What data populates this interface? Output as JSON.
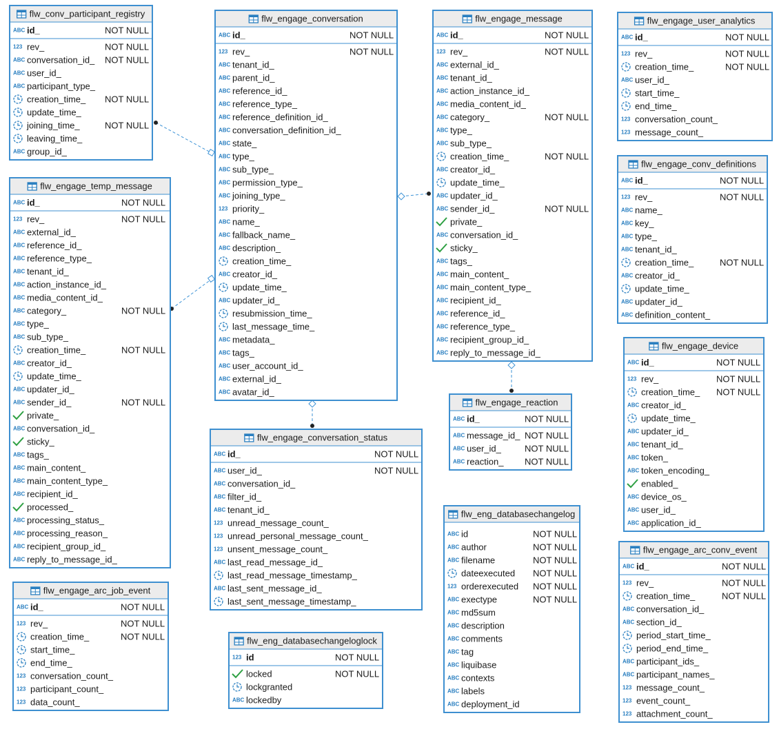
{
  "tables": [
    {
      "name": "flw_conv_participant_registry",
      "key": [
        {
          "kind": "ABC",
          "name": "id_",
          "constraint": "NOT NULL"
        }
      ],
      "columns": [
        {
          "kind": "123",
          "name": "rev_",
          "constraint": "NOT NULL"
        },
        {
          "kind": "ABC",
          "name": "conversation_id_",
          "constraint": "NOT NULL"
        },
        {
          "kind": "ABC",
          "name": "user_id_"
        },
        {
          "kind": "ABC",
          "name": "participant_type_"
        },
        {
          "kind": "clock",
          "name": "creation_time_",
          "constraint": "NOT NULL"
        },
        {
          "kind": "clock",
          "name": "update_time_"
        },
        {
          "kind": "clock",
          "name": "joining_time_",
          "constraint": "NOT NULL"
        },
        {
          "kind": "clock",
          "name": "leaving_time_"
        },
        {
          "kind": "ABC",
          "name": "group_id_"
        }
      ]
    },
    {
      "name": "flw_engage_temp_message",
      "key": [
        {
          "kind": "ABC",
          "name": "id_",
          "constraint": "NOT NULL"
        }
      ],
      "columns": [
        {
          "kind": "123",
          "name": "rev_",
          "constraint": "NOT NULL"
        },
        {
          "kind": "ABC",
          "name": "external_id_"
        },
        {
          "kind": "ABC",
          "name": "reference_id_"
        },
        {
          "kind": "ABC",
          "name": "reference_type_"
        },
        {
          "kind": "ABC",
          "name": "tenant_id_"
        },
        {
          "kind": "ABC",
          "name": "action_instance_id_"
        },
        {
          "kind": "ABC",
          "name": "media_content_id_"
        },
        {
          "kind": "ABC",
          "name": "category_",
          "constraint": "NOT NULL"
        },
        {
          "kind": "ABC",
          "name": "type_"
        },
        {
          "kind": "ABC",
          "name": "sub_type_"
        },
        {
          "kind": "clock",
          "name": "creation_time_",
          "constraint": "NOT NULL"
        },
        {
          "kind": "ABC",
          "name": "creator_id_"
        },
        {
          "kind": "clock",
          "name": "update_time_"
        },
        {
          "kind": "ABC",
          "name": "updater_id_"
        },
        {
          "kind": "ABC",
          "name": "sender_id_",
          "constraint": "NOT NULL"
        },
        {
          "kind": "check",
          "name": "private_"
        },
        {
          "kind": "ABC",
          "name": "conversation_id_"
        },
        {
          "kind": "check",
          "name": "sticky_"
        },
        {
          "kind": "ABC",
          "name": "tags_"
        },
        {
          "kind": "ABC",
          "name": "main_content_"
        },
        {
          "kind": "ABC",
          "name": "main_content_type_"
        },
        {
          "kind": "ABC",
          "name": "recipient_id_"
        },
        {
          "kind": "check",
          "name": "processed_"
        },
        {
          "kind": "ABC",
          "name": "processing_status_"
        },
        {
          "kind": "ABC",
          "name": "processing_reason_"
        },
        {
          "kind": "ABC",
          "name": "recipient_group_id_"
        },
        {
          "kind": "ABC",
          "name": "reply_to_message_id_"
        }
      ]
    },
    {
      "name": "flw_engage_arc_job_event",
      "key": [
        {
          "kind": "ABC",
          "name": "id_",
          "constraint": "NOT NULL"
        }
      ],
      "columns": [
        {
          "kind": "123",
          "name": "rev_",
          "constraint": "NOT NULL"
        },
        {
          "kind": "clock",
          "name": "creation_time_",
          "constraint": "NOT NULL"
        },
        {
          "kind": "clock",
          "name": "start_time_"
        },
        {
          "kind": "clock",
          "name": "end_time_"
        },
        {
          "kind": "123",
          "name": "conversation_count_"
        },
        {
          "kind": "123",
          "name": "participant_count_"
        },
        {
          "kind": "123",
          "name": "data_count_"
        }
      ]
    },
    {
      "name": "flw_engage_conversation",
      "key": [
        {
          "kind": "ABC",
          "name": "id_",
          "constraint": "NOT NULL"
        }
      ],
      "columns": [
        {
          "kind": "123",
          "name": "rev_",
          "constraint": "NOT NULL"
        },
        {
          "kind": "ABC",
          "name": "tenant_id_"
        },
        {
          "kind": "ABC",
          "name": "parent_id_"
        },
        {
          "kind": "ABC",
          "name": "reference_id_"
        },
        {
          "kind": "ABC",
          "name": "reference_type_"
        },
        {
          "kind": "ABC",
          "name": "reference_definition_id_"
        },
        {
          "kind": "ABC",
          "name": "conversation_definition_id_"
        },
        {
          "kind": "ABC",
          "name": "state_"
        },
        {
          "kind": "ABC",
          "name": "type_"
        },
        {
          "kind": "ABC",
          "name": "sub_type_"
        },
        {
          "kind": "ABC",
          "name": "permission_type_"
        },
        {
          "kind": "ABC",
          "name": "joining_type_"
        },
        {
          "kind": "123",
          "name": "priority_"
        },
        {
          "kind": "ABC",
          "name": "name_"
        },
        {
          "kind": "ABC",
          "name": "fallback_name_"
        },
        {
          "kind": "ABC",
          "name": "description_"
        },
        {
          "kind": "clock",
          "name": "creation_time_"
        },
        {
          "kind": "ABC",
          "name": "creator_id_"
        },
        {
          "kind": "clock",
          "name": "update_time_"
        },
        {
          "kind": "ABC",
          "name": "updater_id_"
        },
        {
          "kind": "clock",
          "name": "resubmission_time_"
        },
        {
          "kind": "clock",
          "name": "last_message_time_"
        },
        {
          "kind": "ABC",
          "name": "metadata_"
        },
        {
          "kind": "ABC",
          "name": "tags_"
        },
        {
          "kind": "ABC",
          "name": "user_account_id_"
        },
        {
          "kind": "ABC",
          "name": "external_id_"
        },
        {
          "kind": "ABC",
          "name": "avatar_id_"
        }
      ]
    },
    {
      "name": "flw_engage_conversation_status",
      "key": [
        {
          "kind": "ABC",
          "name": "id_",
          "constraint": "NOT NULL"
        }
      ],
      "columns": [
        {
          "kind": "ABC",
          "name": "user_id_",
          "constraint": "NOT NULL"
        },
        {
          "kind": "ABC",
          "name": "conversation_id_"
        },
        {
          "kind": "ABC",
          "name": "filter_id_"
        },
        {
          "kind": "ABC",
          "name": "tenant_id_"
        },
        {
          "kind": "123",
          "name": "unread_message_count_"
        },
        {
          "kind": "123",
          "name": "unread_personal_message_count_"
        },
        {
          "kind": "123",
          "name": "unsent_message_count_"
        },
        {
          "kind": "ABC",
          "name": "last_read_message_id_"
        },
        {
          "kind": "clock",
          "name": "last_read_message_timestamp_"
        },
        {
          "kind": "ABC",
          "name": "last_sent_message_id_"
        },
        {
          "kind": "clock",
          "name": "last_sent_message_timestamp_"
        }
      ]
    },
    {
      "name": "flw_eng_databasechangeloglock",
      "key": [
        {
          "kind": "123",
          "name": "id",
          "constraint": "NOT NULL"
        }
      ],
      "columns": [
        {
          "kind": "check",
          "name": "locked",
          "constraint": "NOT NULL"
        },
        {
          "kind": "clock",
          "name": "lockgranted"
        },
        {
          "kind": "ABC",
          "name": "lockedby"
        }
      ]
    },
    {
      "name": "flw_engage_message",
      "key": [
        {
          "kind": "ABC",
          "name": "id_",
          "constraint": "NOT NULL"
        }
      ],
      "columns": [
        {
          "kind": "123",
          "name": "rev_",
          "constraint": "NOT NULL"
        },
        {
          "kind": "ABC",
          "name": "external_id_"
        },
        {
          "kind": "ABC",
          "name": "tenant_id_"
        },
        {
          "kind": "ABC",
          "name": "action_instance_id_"
        },
        {
          "kind": "ABC",
          "name": "media_content_id_"
        },
        {
          "kind": "ABC",
          "name": "category_",
          "constraint": "NOT NULL"
        },
        {
          "kind": "ABC",
          "name": "type_"
        },
        {
          "kind": "ABC",
          "name": "sub_type_"
        },
        {
          "kind": "clock",
          "name": "creation_time_",
          "constraint": "NOT NULL"
        },
        {
          "kind": "ABC",
          "name": "creator_id_"
        },
        {
          "kind": "clock",
          "name": "update_time_"
        },
        {
          "kind": "ABC",
          "name": "updater_id_"
        },
        {
          "kind": "ABC",
          "name": "sender_id_",
          "constraint": "NOT NULL"
        },
        {
          "kind": "check",
          "name": "private_"
        },
        {
          "kind": "ABC",
          "name": "conversation_id_"
        },
        {
          "kind": "check",
          "name": "sticky_"
        },
        {
          "kind": "ABC",
          "name": "tags_"
        },
        {
          "kind": "ABC",
          "name": "main_content_"
        },
        {
          "kind": "ABC",
          "name": "main_content_type_"
        },
        {
          "kind": "ABC",
          "name": "recipient_id_"
        },
        {
          "kind": "ABC",
          "name": "reference_id_"
        },
        {
          "kind": "ABC",
          "name": "reference_type_"
        },
        {
          "kind": "ABC",
          "name": "recipient_group_id_"
        },
        {
          "kind": "ABC",
          "name": "reply_to_message_id_"
        }
      ]
    },
    {
      "name": "flw_engage_reaction",
      "key": [
        {
          "kind": "ABC",
          "name": "id_",
          "constraint": "NOT NULL"
        }
      ],
      "columns": [
        {
          "kind": "ABC",
          "name": "message_id_",
          "constraint": "NOT NULL"
        },
        {
          "kind": "ABC",
          "name": "user_id_",
          "constraint": "NOT NULL"
        },
        {
          "kind": "ABC",
          "name": "reaction_",
          "constraint": "NOT NULL"
        }
      ]
    },
    {
      "name": "flw_eng_databasechangelog",
      "key": [],
      "columns": [
        {
          "kind": "ABC",
          "name": "id",
          "constraint": "NOT NULL"
        },
        {
          "kind": "ABC",
          "name": "author",
          "constraint": "NOT NULL"
        },
        {
          "kind": "ABC",
          "name": "filename",
          "constraint": "NOT NULL"
        },
        {
          "kind": "clock",
          "name": "dateexecuted",
          "constraint": "NOT NULL"
        },
        {
          "kind": "123",
          "name": "orderexecuted",
          "constraint": "NOT NULL"
        },
        {
          "kind": "ABC",
          "name": "exectype",
          "constraint": "NOT NULL"
        },
        {
          "kind": "ABC",
          "name": "md5sum"
        },
        {
          "kind": "ABC",
          "name": "description"
        },
        {
          "kind": "ABC",
          "name": "comments"
        },
        {
          "kind": "ABC",
          "name": "tag"
        },
        {
          "kind": "ABC",
          "name": "liquibase"
        },
        {
          "kind": "ABC",
          "name": "contexts"
        },
        {
          "kind": "ABC",
          "name": "labels"
        },
        {
          "kind": "ABC",
          "name": "deployment_id"
        }
      ]
    },
    {
      "name": "flw_engage_user_analytics",
      "key": [
        {
          "kind": "ABC",
          "name": "id_",
          "constraint": "NOT NULL"
        }
      ],
      "columns": [
        {
          "kind": "123",
          "name": "rev_",
          "constraint": "NOT NULL"
        },
        {
          "kind": "clock",
          "name": "creation_time_",
          "constraint": "NOT NULL"
        },
        {
          "kind": "ABC",
          "name": "user_id_"
        },
        {
          "kind": "clock",
          "name": "start_time_"
        },
        {
          "kind": "clock",
          "name": "end_time_"
        },
        {
          "kind": "123",
          "name": "conversation_count_"
        },
        {
          "kind": "123",
          "name": "message_count_"
        }
      ]
    },
    {
      "name": "flw_engage_conv_definitions",
      "key": [
        {
          "kind": "ABC",
          "name": "id_",
          "constraint": "NOT NULL"
        }
      ],
      "columns": [
        {
          "kind": "123",
          "name": "rev_",
          "constraint": "NOT NULL"
        },
        {
          "kind": "ABC",
          "name": "name_"
        },
        {
          "kind": "ABC",
          "name": "key_"
        },
        {
          "kind": "ABC",
          "name": "type_"
        },
        {
          "kind": "ABC",
          "name": "tenant_id_"
        },
        {
          "kind": "clock",
          "name": "creation_time_",
          "constraint": "NOT NULL"
        },
        {
          "kind": "ABC",
          "name": "creator_id_"
        },
        {
          "kind": "clock",
          "name": "update_time_"
        },
        {
          "kind": "ABC",
          "name": "updater_id_"
        },
        {
          "kind": "ABC",
          "name": "definition_content_"
        }
      ]
    },
    {
      "name": "flw_engage_device",
      "key": [
        {
          "kind": "ABC",
          "name": "id_",
          "constraint": "NOT NULL"
        }
      ],
      "columns": [
        {
          "kind": "123",
          "name": "rev_",
          "constraint": "NOT NULL"
        },
        {
          "kind": "clock",
          "name": "creation_time_",
          "constraint": "NOT NULL"
        },
        {
          "kind": "ABC",
          "name": "creator_id_"
        },
        {
          "kind": "clock",
          "name": "update_time_"
        },
        {
          "kind": "ABC",
          "name": "updater_id_"
        },
        {
          "kind": "ABC",
          "name": "tenant_id_"
        },
        {
          "kind": "ABC",
          "name": "token_"
        },
        {
          "kind": "ABC",
          "name": "token_encoding_"
        },
        {
          "kind": "check",
          "name": "enabled_"
        },
        {
          "kind": "ABC",
          "name": "device_os_"
        },
        {
          "kind": "ABC",
          "name": "user_id_"
        },
        {
          "kind": "ABC",
          "name": "application_id_"
        }
      ]
    },
    {
      "name": "flw_engage_arc_conv_event",
      "key": [
        {
          "kind": "ABC",
          "name": "id_",
          "constraint": "NOT NULL"
        }
      ],
      "columns": [
        {
          "kind": "123",
          "name": "rev_",
          "constraint": "NOT NULL"
        },
        {
          "kind": "clock",
          "name": "creation_time_",
          "constraint": "NOT NULL"
        },
        {
          "kind": "ABC",
          "name": "conversation_id_"
        },
        {
          "kind": "ABC",
          "name": "section_id_"
        },
        {
          "kind": "clock",
          "name": "period_start_time_"
        },
        {
          "kind": "clock",
          "name": "period_end_time_"
        },
        {
          "kind": "ABC",
          "name": "participant_ids_"
        },
        {
          "kind": "ABC",
          "name": "participant_names_"
        },
        {
          "kind": "123",
          "name": "message_count_"
        },
        {
          "kind": "123",
          "name": "event_count_"
        },
        {
          "kind": "123",
          "name": "attachment_count_"
        }
      ]
    }
  ]
}
